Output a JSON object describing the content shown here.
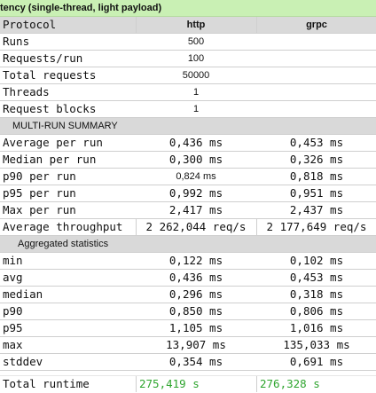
{
  "title": "tency (single-thread, light payload)",
  "header": {
    "label": "Protocol",
    "col1": "http",
    "col2": "grpc"
  },
  "config_rows": [
    {
      "label": "Runs",
      "http": "500",
      "grpc": ""
    },
    {
      "label": "Requests/run",
      "http": "100",
      "grpc": ""
    },
    {
      "label": "Total requests",
      "http": "50000",
      "grpc": ""
    },
    {
      "label": "Threads",
      "http": "1",
      "grpc": ""
    },
    {
      "label": "Request blocks",
      "http": "1",
      "grpc": ""
    }
  ],
  "multi_run_header": "MULTI-RUN SUMMARY",
  "multi_run_rows": [
    {
      "label": "Average per run",
      "http": "0,436 ms",
      "grpc": "0,453 ms"
    },
    {
      "label": "Median per run",
      "http": "0,300 ms",
      "grpc": "0,326 ms"
    },
    {
      "label": "p90 per run",
      "http": "0,824 ms",
      "grpc": "0,818 ms"
    },
    {
      "label": "p95 per run",
      "http": "0,992 ms",
      "grpc": "0,951 ms"
    },
    {
      "label": "Max per run",
      "http": "2,417 ms",
      "grpc": "2,437 ms"
    },
    {
      "label": "Average throughput",
      "http": "2 262,044 req/s",
      "grpc": "2 177,649 req/s"
    }
  ],
  "aggregated_header": "Aggregated statistics",
  "aggregated_rows": [
    {
      "label": "min",
      "http": "0,122 ms",
      "grpc": "0,102 ms"
    },
    {
      "label": "avg",
      "http": "0,436 ms",
      "grpc": "0,453 ms"
    },
    {
      "label": "median",
      "http": "0,296 ms",
      "grpc": "0,318 ms"
    },
    {
      "label": "p90",
      "http": "0,850 ms",
      "grpc": "0,806 ms"
    },
    {
      "label": "p95",
      "http": "1,105 ms",
      "grpc": "1,016 ms"
    },
    {
      "label": "max",
      "http": "13,907 ms",
      "grpc": "135,033 ms"
    },
    {
      "label": "stddev",
      "http": "0,354 ms",
      "grpc": "0,691 ms"
    }
  ],
  "total_runtime": {
    "label": "Total runtime",
    "http": "275,419 s",
    "grpc": "276,328 s"
  },
  "colors": {
    "title_bg": "#c9f0b4",
    "section_bg": "#d9d9d9",
    "runtime_value": "#2fa52f"
  }
}
